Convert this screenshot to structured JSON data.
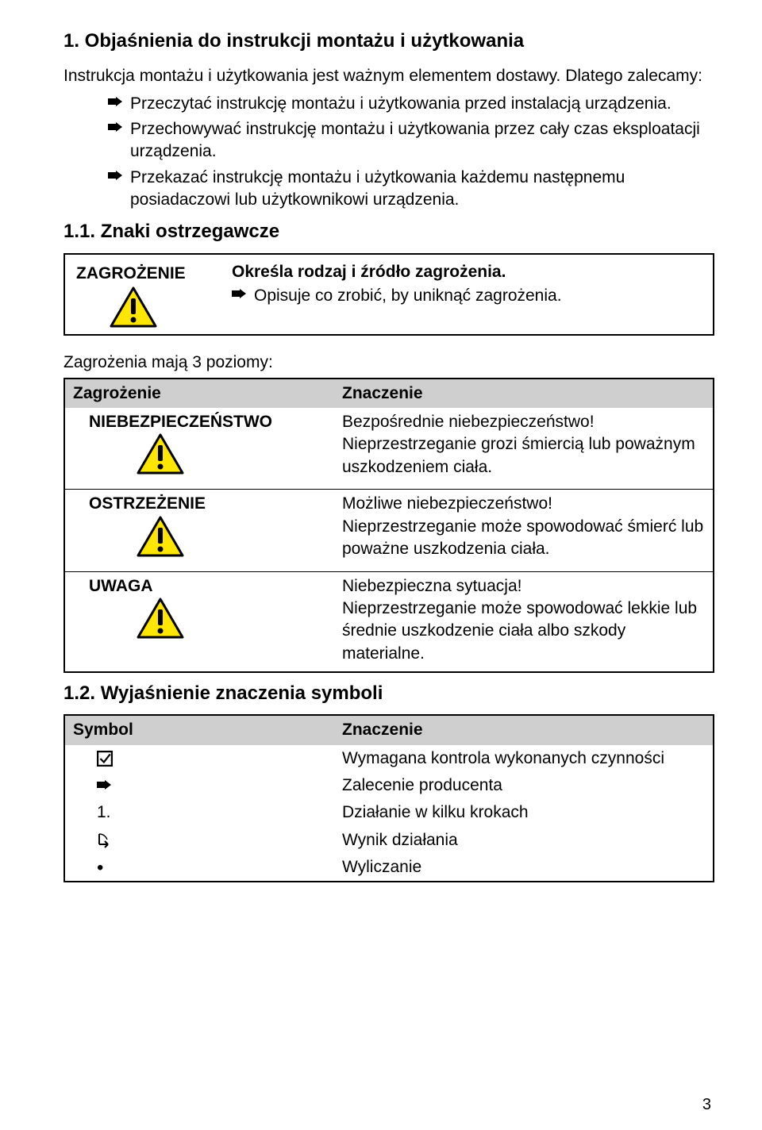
{
  "section1_title": "1. Objaśnienia do instrukcji montażu i użytkowania",
  "intro_line1": "Instrukcja montażu i użytkowania jest ważnym elementem dostawy. Dlatego zalecamy:",
  "bullets_main": [
    "Przeczytać instrukcję montażu i użytkowania przed instalacją urządzenia.",
    "Przechowywać instrukcję montażu i użytkowania przez cały czas eksploatacji urządzenia.",
    "Przekazać instrukcję montażu i użytkowania każdemu następnemu posiadaczowi lub użytkownikowi urządzenia."
  ],
  "section11_title": "1.1. Znaki ostrzegawcze",
  "zagro_label": "ZAGROŻENIE",
  "zagro_line1": "Określa rodzaj i źródło zagrożenia.",
  "zagro_line2": "Opisuje co zrobić, by uniknąć zagrożenia.",
  "levels_intro": "Zagrożenia mają 3 poziomy:",
  "levels_hdr_left": "Zagrożenie",
  "levels_hdr_right": "Znaczenie",
  "levels": [
    {
      "label": "NIEBEZPIECZEŃSTWO",
      "desc": "Bezpośrednie niebezpieczeństwo!\nNieprzestrzeganie grozi śmiercią lub poważnym uszkodzeniem ciała."
    },
    {
      "label": "OSTRZEŻENIE",
      "desc": "Możliwe niebezpieczeństwo!\nNieprzestrzeganie może spowodować śmierć lub poważne uszkodzenia ciała."
    },
    {
      "label": "UWAGA",
      "desc": "Niebezpieczna sytuacja!\nNieprzestrzeganie może spowodować lekkie lub średnie uszkodzenie ciała albo szkody materialne."
    }
  ],
  "section12_title": "1.2. Wyjaśnienie znaczenia symboli",
  "sym_hdr_left": "Symbol",
  "sym_hdr_right": "Znaczenie",
  "sym_rows": [
    {
      "sym": "checkbox",
      "desc": "Wymagana kontrola wykonanych czynności"
    },
    {
      "sym": "arrow",
      "desc": "Zalecenie producenta"
    },
    {
      "sym": "num1",
      "label": "1.",
      "desc": "Działanie w kilku krokach"
    },
    {
      "sym": "result",
      "desc": "Wynik działania"
    },
    {
      "sym": "bullet",
      "desc": "Wyliczanie"
    }
  ],
  "page_number": "3",
  "colors": {
    "triangle_fill": "#ffe600",
    "triangle_stroke": "#000000",
    "header_bg": "#cfcfcf",
    "text": "#000000",
    "background": "#ffffff"
  },
  "icon_names": {
    "arrow": "arrow-right-icon",
    "triangle": "warning-triangle-icon",
    "checkbox": "checkbox-checked-icon",
    "result": "result-arrow-icon",
    "bullet": "bullet-dot-icon"
  }
}
